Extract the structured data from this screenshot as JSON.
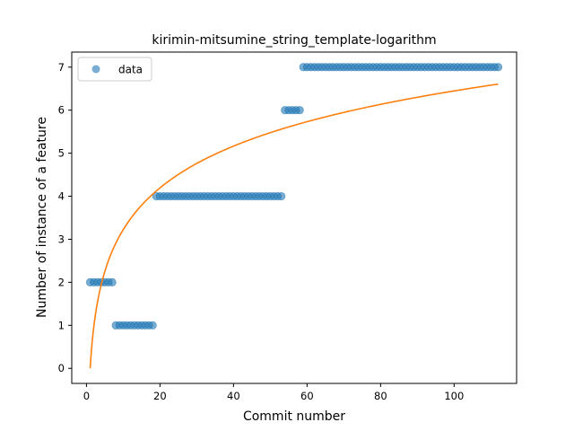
{
  "chart_data": {
    "type": "scatter",
    "title": "kirimin-mitsumine_string_template-logarithm",
    "xlabel": "Commit number",
    "ylabel": "Number of instance of a feature",
    "xlim": [
      -4,
      117
    ],
    "ylim": [
      -0.35,
      7.35
    ],
    "xticks": [
      0,
      20,
      40,
      60,
      80,
      100
    ],
    "yticks": [
      0,
      1,
      2,
      3,
      4,
      5,
      6,
      7
    ],
    "grid": false,
    "legend": {
      "position": "top-left",
      "entries": [
        "data"
      ]
    },
    "colors": {
      "data": "#1f77b4",
      "fit": "#ff7f0e"
    },
    "series": [
      {
        "name": "data",
        "kind": "scatter",
        "segments": [
          {
            "x_from": 1,
            "x_to": 7,
            "y": 2
          },
          {
            "x_from": 8,
            "x_to": 18,
            "y": 1
          },
          {
            "x_from": 19,
            "x_to": 53,
            "y": 4
          },
          {
            "x_from": 54,
            "x_to": 58,
            "y": 6
          },
          {
            "x_from": 59,
            "x_to": 112,
            "y": 7
          }
        ]
      },
      {
        "kind": "line",
        "model": "logarithmic",
        "coefficients": {
          "a": 1.4,
          "b": 0
        },
        "x_range": [
          1,
          112
        ]
      }
    ]
  }
}
